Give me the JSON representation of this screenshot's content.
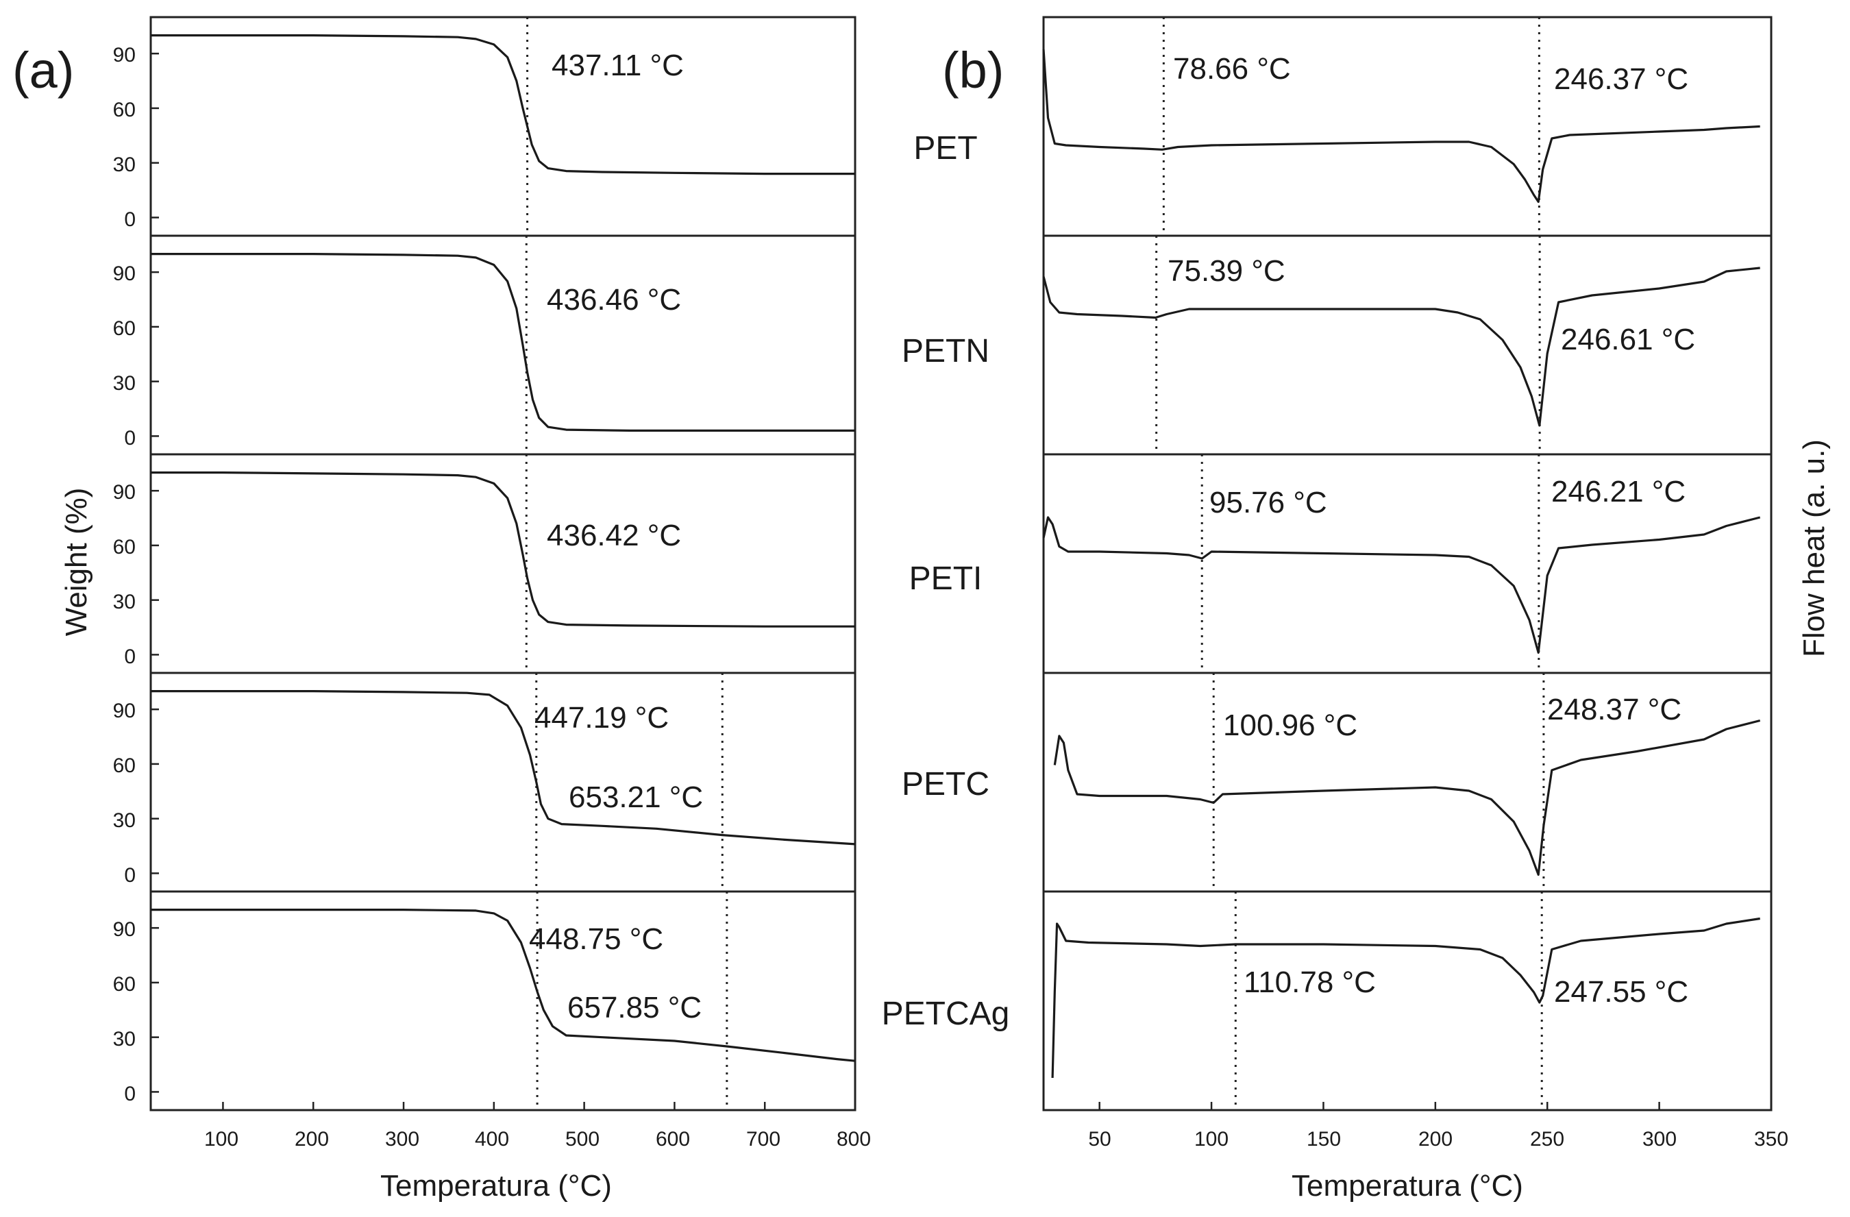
{
  "chart_data": [
    {
      "type": "line",
      "panel_label": "(a)",
      "xlabel": "Temperatura (°C)",
      "ylabel": "Weight (%)",
      "xlim": [
        20,
        800
      ],
      "ylim": [
        -10,
        110
      ],
      "x_ticks": [
        "100",
        "200",
        "300",
        "400",
        "500",
        "600",
        "700",
        "800"
      ],
      "y_ticks": [
        "0",
        "30",
        "60",
        "90"
      ],
      "series": [
        {
          "name": "PET",
          "points": [
            [
              20,
              100
            ],
            [
              100,
              100
            ],
            [
              200,
              100
            ],
            [
              300,
              99.5
            ],
            [
              360,
              99
            ],
            [
              380,
              98
            ],
            [
              400,
              95
            ],
            [
              415,
              88
            ],
            [
              425,
              75
            ],
            [
              432,
              60
            ],
            [
              437,
              50
            ],
            [
              442,
              40
            ],
            [
              450,
              31
            ],
            [
              460,
              27
            ],
            [
              480,
              25.5
            ],
            [
              520,
              25
            ],
            [
              600,
              24.5
            ],
            [
              700,
              24
            ],
            [
              800,
              24
            ]
          ],
          "markers": [
            {
              "x": 437,
              "label": "437.11 °C"
            }
          ]
        },
        {
          "name": "PETN",
          "points": [
            [
              20,
              100
            ],
            [
              100,
              100
            ],
            [
              200,
              100
            ],
            [
              300,
              99.5
            ],
            [
              360,
              99
            ],
            [
              380,
              98
            ],
            [
              400,
              94
            ],
            [
              415,
              85
            ],
            [
              425,
              70
            ],
            [
              432,
              50
            ],
            [
              437,
              35
            ],
            [
              443,
              20
            ],
            [
              450,
              10
            ],
            [
              460,
              5
            ],
            [
              480,
              3.5
            ],
            [
              550,
              3
            ],
            [
              700,
              3
            ],
            [
              800,
              3
            ]
          ],
          "markers": [
            {
              "x": 436,
              "label": "436.46 °C"
            }
          ]
        },
        {
          "name": "PETI",
          "points": [
            [
              20,
              100
            ],
            [
              100,
              100
            ],
            [
              200,
              99.5
            ],
            [
              300,
              99
            ],
            [
              360,
              98.5
            ],
            [
              380,
              97.5
            ],
            [
              400,
              94
            ],
            [
              415,
              86
            ],
            [
              425,
              72
            ],
            [
              432,
              55
            ],
            [
              437,
              42
            ],
            [
              443,
              30
            ],
            [
              450,
              22
            ],
            [
              460,
              18
            ],
            [
              480,
              16.5
            ],
            [
              550,
              16
            ],
            [
              700,
              15.5
            ],
            [
              800,
              15.5
            ]
          ],
          "markers": [
            {
              "x": 436,
              "label": "436.42 °C"
            }
          ]
        },
        {
          "name": "PETC",
          "points": [
            [
              20,
              100
            ],
            [
              100,
              100
            ],
            [
              200,
              100
            ],
            [
              300,
              99.5
            ],
            [
              370,
              99
            ],
            [
              395,
              98
            ],
            [
              415,
              92
            ],
            [
              430,
              80
            ],
            [
              440,
              65
            ],
            [
              447,
              50
            ],
            [
              452,
              38
            ],
            [
              460,
              30
            ],
            [
              475,
              27
            ],
            [
              520,
              26
            ],
            [
              580,
              24.5
            ],
            [
              653,
              21
            ],
            [
              720,
              18.5
            ],
            [
              800,
              16
            ]
          ],
          "markers": [
            {
              "x": 447,
              "label": "447.19 °C"
            },
            {
              "x": 653,
              "label": "653.21 °C"
            }
          ]
        },
        {
          "name": "PETCAg",
          "points": [
            [
              20,
              100
            ],
            [
              100,
              100
            ],
            [
              200,
              100
            ],
            [
              300,
              100
            ],
            [
              380,
              99.5
            ],
            [
              400,
              98
            ],
            [
              415,
              94
            ],
            [
              430,
              82
            ],
            [
              440,
              68
            ],
            [
              448,
              55
            ],
            [
              455,
              45
            ],
            [
              465,
              36
            ],
            [
              480,
              31
            ],
            [
              520,
              30
            ],
            [
              600,
              28
            ],
            [
              658,
              25
            ],
            [
              720,
              21.5
            ],
            [
              780,
              18
            ],
            [
              800,
              17
            ]
          ],
          "markers": [
            {
              "x": 448,
              "label": "448.75 °C"
            },
            {
              "x": 658,
              "label": "657.85 °C"
            }
          ]
        }
      ]
    },
    {
      "type": "line",
      "panel_label": "(b)",
      "xlabel": "Temperatura (°C)",
      "ylabel": "Flow heat (a. u.)",
      "xlim": [
        25,
        350
      ],
      "x_ticks": [
        "50",
        "100",
        "150",
        "200",
        "250",
        "300",
        "350"
      ],
      "series": [
        {
          "name": "PET",
          "points": [
            [
              25,
              100
            ],
            [
              27,
              60
            ],
            [
              30,
              45
            ],
            [
              35,
              44
            ],
            [
              50,
              43
            ],
            [
              70,
              42
            ],
            [
              78,
              41.5
            ],
            [
              85,
              43
            ],
            [
              100,
              44
            ],
            [
              150,
              45
            ],
            [
              200,
              46
            ],
            [
              215,
              46
            ],
            [
              225,
              43
            ],
            [
              235,
              33
            ],
            [
              240,
              24
            ],
            [
              244,
              15
            ],
            [
              246,
              11
            ],
            [
              248,
              30
            ],
            [
              252,
              48
            ],
            [
              260,
              50
            ],
            [
              300,
              52
            ],
            [
              320,
              53
            ],
            [
              330,
              54
            ],
            [
              345,
              55
            ]
          ],
          "markers": [
            {
              "x": 78.66,
              "label": "78.66 °C"
            },
            {
              "x": 246.37,
              "label": "246.37 °C"
            }
          ]
        },
        {
          "name": "PETN",
          "points": [
            [
              25,
              95
            ],
            [
              28,
              80
            ],
            [
              32,
              74
            ],
            [
              40,
              73
            ],
            [
              60,
              72
            ],
            [
              75,
              71
            ],
            [
              80,
              73
            ],
            [
              90,
              76
            ],
            [
              150,
              76
            ],
            [
              200,
              76
            ],
            [
              210,
              74
            ],
            [
              220,
              70
            ],
            [
              230,
              58
            ],
            [
              238,
              42
            ],
            [
              243,
              25
            ],
            [
              246.5,
              8
            ],
            [
              250,
              50
            ],
            [
              255,
              80
            ],
            [
              270,
              84
            ],
            [
              300,
              88
            ],
            [
              320,
              92
            ],
            [
              330,
              98
            ],
            [
              345,
              100
            ]
          ],
          "markers": [
            {
              "x": 75.39,
              "label": "75.39 °C"
            },
            {
              "x": 246.61,
              "label": "246.61 °C"
            }
          ]
        },
        {
          "name": "PETI",
          "points": [
            [
              25,
              70
            ],
            [
              27,
              82
            ],
            [
              29,
              78
            ],
            [
              32,
              65
            ],
            [
              36,
              62
            ],
            [
              50,
              62
            ],
            [
              80,
              61
            ],
            [
              90,
              60
            ],
            [
              95.8,
              58
            ],
            [
              100,
              62
            ],
            [
              150,
              61
            ],
            [
              200,
              60
            ],
            [
              215,
              59
            ],
            [
              225,
              54
            ],
            [
              235,
              42
            ],
            [
              242,
              22
            ],
            [
              246,
              3
            ],
            [
              250,
              48
            ],
            [
              255,
              64
            ],
            [
              270,
              66
            ],
            [
              300,
              69
            ],
            [
              320,
              72
            ],
            [
              330,
              77
            ],
            [
              345,
              82
            ]
          ],
          "markers": [
            {
              "x": 95.76,
              "label": "95.76 °C"
            },
            {
              "x": 246.21,
              "label": "246.21 °C"
            }
          ]
        },
        {
          "name": "PETC",
          "points": [
            [
              30,
              65
            ],
            [
              32,
              82
            ],
            [
              34,
              78
            ],
            [
              36,
              62
            ],
            [
              40,
              48
            ],
            [
              50,
              47
            ],
            [
              80,
              47
            ],
            [
              95,
              45
            ],
            [
              100.96,
              43
            ],
            [
              105,
              48
            ],
            [
              150,
              50
            ],
            [
              200,
              52
            ],
            [
              215,
              50
            ],
            [
              225,
              45
            ],
            [
              235,
              32
            ],
            [
              242,
              15
            ],
            [
              246,
              1
            ],
            [
              248.4,
              30
            ],
            [
              252,
              62
            ],
            [
              265,
              68
            ],
            [
              290,
              73
            ],
            [
              320,
              80
            ],
            [
              330,
              86
            ],
            [
              345,
              91
            ]
          ],
          "markers": [
            {
              "x": 100.96,
              "label": "100.96 °C"
            },
            {
              "x": 248.37,
              "label": "248.37 °C"
            }
          ]
        },
        {
          "name": "PETCAg",
          "points": [
            [
              29,
              10
            ],
            [
              30,
              60
            ],
            [
              31,
              100
            ],
            [
              32,
              98
            ],
            [
              35,
              90
            ],
            [
              45,
              89
            ],
            [
              80,
              88
            ],
            [
              95,
              87
            ],
            [
              110.78,
              88
            ],
            [
              150,
              88
            ],
            [
              200,
              87
            ],
            [
              220,
              85
            ],
            [
              230,
              80
            ],
            [
              238,
              70
            ],
            [
              244,
              60
            ],
            [
              246.5,
              54
            ],
            [
              248,
              58
            ],
            [
              252,
              85
            ],
            [
              265,
              90
            ],
            [
              300,
              94
            ],
            [
              320,
              96
            ],
            [
              330,
              100
            ],
            [
              345,
              103
            ]
          ],
          "markers": [
            {
              "x": 110.78,
              "label": "110.78 °C"
            },
            {
              "x": 247.55,
              "label": "247.55 °C"
            }
          ]
        }
      ]
    }
  ]
}
